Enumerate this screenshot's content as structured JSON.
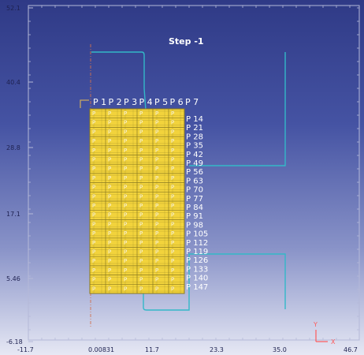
{
  "viewer": {
    "step_label": "Step  -1",
    "colors": {
      "background_top": "#2f3a86",
      "background_bottom": "#e6e8f4",
      "frame": "#b5b9d8",
      "mesh_fill": "#f2d33c",
      "mesh_line": "#8a7a20",
      "die_line": "#33b8c8",
      "centerline": "#d07050"
    },
    "y_ticks": [
      "52.1",
      "40.4",
      "28.8",
      "17.1",
      "5.46",
      "-6.18"
    ],
    "x_ticks": [
      "-11.7",
      "0.00831",
      "11.7",
      "23.3",
      "35.0",
      "46.7"
    ],
    "column_labels": [
      "P 1",
      "P 2",
      "P 3",
      "P 4",
      "P 5",
      "P 6",
      "P 7"
    ],
    "row_labels": [
      "P 14",
      "P 21",
      "P 28",
      "P 35",
      "P 42",
      "P 49",
      "P 56",
      "P 63",
      "P 70",
      "P 77",
      "P 84",
      "P 91",
      "P 98",
      "P 105",
      "P 112",
      "P 119",
      "P 126",
      "P 133",
      "P 140",
      "P 147"
    ],
    "cell_label": "P",
    "triad": {
      "y": "Y",
      "x": "X"
    }
  }
}
